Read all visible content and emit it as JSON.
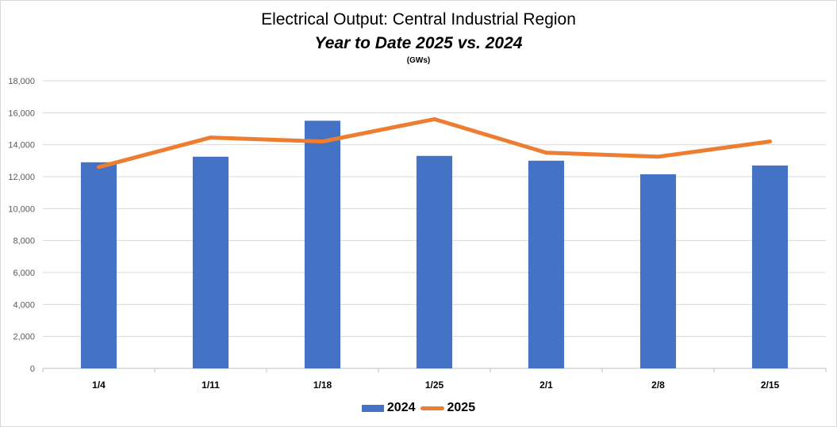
{
  "chart_data": {
    "type": "bar",
    "title": "Electrical Output:  Central Industrial Region",
    "subtitle": "Year to Date 2025 vs. 2024",
    "unit": "(GWs)",
    "categories": [
      "1/4",
      "1/11",
      "1/18",
      "1/25",
      "2/1",
      "2/8",
      "2/15"
    ],
    "series": [
      {
        "name": "2024",
        "type": "bar",
        "color": "#4472c4",
        "values": [
          12900,
          13250,
          15500,
          13300,
          13000,
          12150,
          12700
        ]
      },
      {
        "name": "2025",
        "type": "line",
        "color": "#ed7d31",
        "values": [
          12600,
          14450,
          14200,
          15600,
          13500,
          13250,
          14200
        ]
      }
    ],
    "ylim": [
      0,
      18000
    ],
    "yticks": [
      "0",
      "2,000",
      "4,000",
      "6,000",
      "8,000",
      "10,000",
      "12,000",
      "14,000",
      "16,000",
      "18,000"
    ],
    "ytick_values": [
      0,
      2000,
      4000,
      6000,
      8000,
      10000,
      12000,
      14000,
      16000,
      18000
    ],
    "grid": true,
    "legend_position": "bottom"
  }
}
